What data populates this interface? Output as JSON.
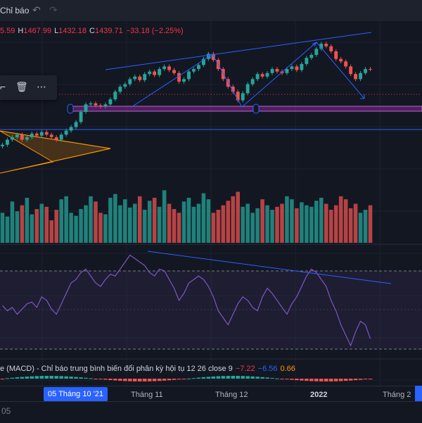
{
  "toolbar": {
    "indicator_label": "Chỉ báo",
    "undo_icon": "undo-icon",
    "redo_icon": "redo-icon"
  },
  "ohlc": {
    "o_label": "",
    "o_value": "5.59",
    "h_label": "H",
    "h_value": "1467.99",
    "l_label": "L",
    "l_value": "1432.18",
    "c_label": "C",
    "c_value": "1439.71",
    "change": "−33.18 (−2.25%)"
  },
  "drawing_toolbox": {
    "icons": [
      "lock-icon",
      "trash-icon",
      "more-icon"
    ]
  },
  "macd": {
    "title": "e (MACD) - Chỉ báo trung bình biến đổi phân kỳ hội tụ 12 26 close 9",
    "macd_value": "−7.22",
    "signal_value": "−6.56",
    "hist_value": "0.66"
  },
  "time_axis": {
    "current": "05 Tháng 10 '21",
    "labels": [
      "Tháng 11",
      "Tháng 12",
      "2022",
      "Tháng 2"
    ]
  },
  "bottom": {
    "tz_label": "05"
  },
  "colors": {
    "up": "#26a69a",
    "down": "#ef5350",
    "trend": "#2962ff",
    "rsi": "#7e57c2",
    "support": "#9c27b0"
  },
  "chart_data": {
    "type": "candlestick",
    "description_series": [
      {
        "name": "price",
        "values": [
          1290,
          1300,
          1305,
          1310,
          1300,
          1305,
          1312,
          1308,
          1315,
          1310,
          1305,
          1300,
          1310,
          1318,
          1325,
          1335,
          1355,
          1370,
          1372,
          1368,
          1366,
          1370,
          1380,
          1395,
          1405,
          1410,
          1420,
          1425,
          1418,
          1430,
          1435,
          1428,
          1440,
          1445,
          1438,
          1432,
          1415,
          1420,
          1435,
          1440,
          1448,
          1460,
          1470,
          1458,
          1440,
          1420,
          1405,
          1395,
          1378,
          1392,
          1410,
          1420,
          1430,
          1425,
          1432,
          1440,
          1435,
          1432,
          1440,
          1445,
          1438,
          1450,
          1462,
          1468,
          1480,
          1490,
          1485,
          1475,
          1460,
          1455,
          1445,
          1430,
          1420,
          1432,
          1440,
          1439.71
        ]
      },
      {
        "name": "volume",
        "values": [
          40,
          35,
          55,
          42,
          50,
          60,
          38,
          45,
          52,
          48,
          30,
          44,
          58,
          62,
          40,
          36,
          45,
          50,
          62,
          55,
          40,
          38,
          60,
          65,
          50,
          58,
          47,
          52,
          62,
          44,
          56,
          60,
          48,
          70,
          52,
          45,
          40,
          55,
          60,
          48,
          52,
          66,
          58,
          40,
          44,
          50,
          56,
          62,
          68,
          48,
          52,
          40,
          46,
          58,
          50,
          44,
          48,
          52,
          62,
          58,
          46,
          54,
          50,
          48,
          56,
          60,
          52,
          44,
          50,
          62,
          58,
          46,
          52,
          40,
          44,
          50
        ]
      },
      {
        "name": "rsi",
        "values": [
          45,
          42,
          44,
          40,
          43,
          46,
          47,
          44,
          50,
          48,
          43,
          40,
          46,
          52,
          58,
          60,
          64,
          66,
          62,
          58,
          56,
          60,
          63,
          62,
          66,
          70,
          74,
          72,
          70,
          68,
          64,
          62,
          66,
          65,
          60,
          55,
          48,
          52,
          58,
          60,
          62,
          60,
          56,
          50,
          42,
          38,
          34,
          40,
          46,
          50,
          48,
          44,
          42,
          50,
          55,
          52,
          48,
          44,
          40,
          46,
          50,
          56,
          62,
          66,
          64,
          60,
          56,
          48,
          42,
          34,
          28,
          22,
          30,
          36,
          34,
          26
        ]
      }
    ],
    "time_labels": [
      "05 Tháng 10 '21",
      "Tháng 11",
      "Tháng 12",
      "2022",
      "Tháng 2"
    ]
  }
}
